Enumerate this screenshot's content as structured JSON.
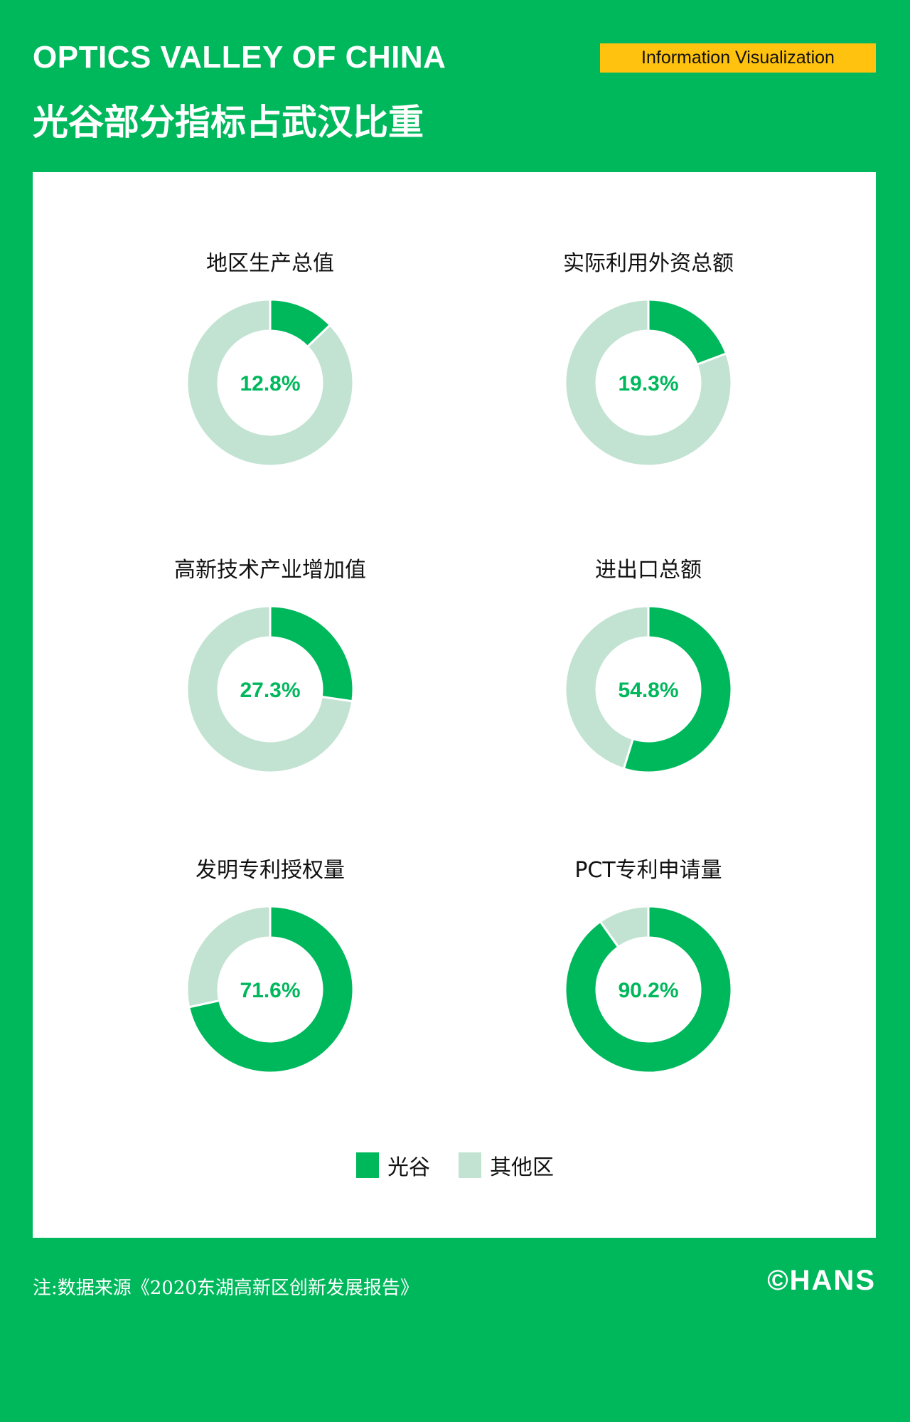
{
  "header": {
    "title_en": "OPTICS VALLEY OF CHINA",
    "title_cn": "光谷部分指标占武汉比重",
    "badge": "Information Visualization"
  },
  "colors": {
    "background": "#00b85c",
    "primary": "#00b85c",
    "other": "#c2e3d2",
    "badge": "#ffc20e"
  },
  "chart_data": {
    "type": "pie",
    "subtype": "donut",
    "legend": [
      "光谷",
      "其他区"
    ],
    "legend_placement": "bottom",
    "charts": [
      {
        "title": "地区生产总值",
        "value": 12.8,
        "label": "12.8%"
      },
      {
        "title": "实际利用外资总额",
        "value": 19.3,
        "label": "19.3%"
      },
      {
        "title": "高新技术产业增加值",
        "value": 27.3,
        "label": "27.3%"
      },
      {
        "title": "进出口总额",
        "value": 54.8,
        "label": "54.8%"
      },
      {
        "title": "发明专利授权量",
        "value": 71.6,
        "label": "71.6%"
      },
      {
        "title": "PCT专利申请量",
        "value": 90.2,
        "label": "90.2%"
      }
    ]
  },
  "footer": {
    "note": "注:数据来源《2020东湖高新区创新发展报告》",
    "logo": "©HANS"
  }
}
